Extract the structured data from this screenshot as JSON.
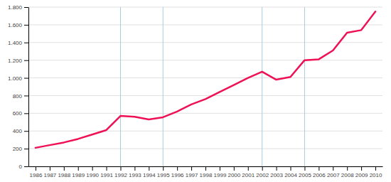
{
  "chart_data": {
    "type": "line",
    "x": [
      1986,
      1987,
      1988,
      1989,
      1990,
      1991,
      1992,
      1993,
      1994,
      1995,
      1996,
      1997,
      1998,
      1999,
      2000,
      2001,
      2002,
      2003,
      2004,
      2005,
      2006,
      2007,
      2008,
      2009,
      2010
    ],
    "values": [
      210,
      240,
      270,
      310,
      360,
      410,
      570,
      560,
      530,
      555,
      620,
      700,
      760,
      840,
      920,
      1000,
      1070,
      980,
      1010,
      1200,
      1210,
      1310,
      1510,
      1540,
      1750
    ],
    "color": "#EE1155",
    "vlines": [
      1992,
      1995,
      2002,
      2005
    ],
    "xlim": [
      1985.5,
      2010.5
    ],
    "xticks": [
      1986,
      1987,
      1988,
      1989,
      1990,
      1991,
      1992,
      1993,
      1994,
      1995,
      1996,
      1997,
      1998,
      1999,
      2000,
      2001,
      2002,
      2003,
      2004,
      2005,
      2006,
      2007,
      2008,
      2009,
      2010
    ],
    "ylim": [
      0,
      1800
    ],
    "yticks": [
      0,
      200,
      400,
      600,
      800,
      {
        "value": 1000,
        "label": "1.000"
      },
      {
        "value": 1200,
        "label": "1.200"
      },
      {
        "value": 1400,
        "label": "1.400"
      },
      {
        "value": 1600,
        "label": "1.600"
      },
      {
        "value": 1800,
        "label": "1.800"
      }
    ],
    "grid": true
  }
}
